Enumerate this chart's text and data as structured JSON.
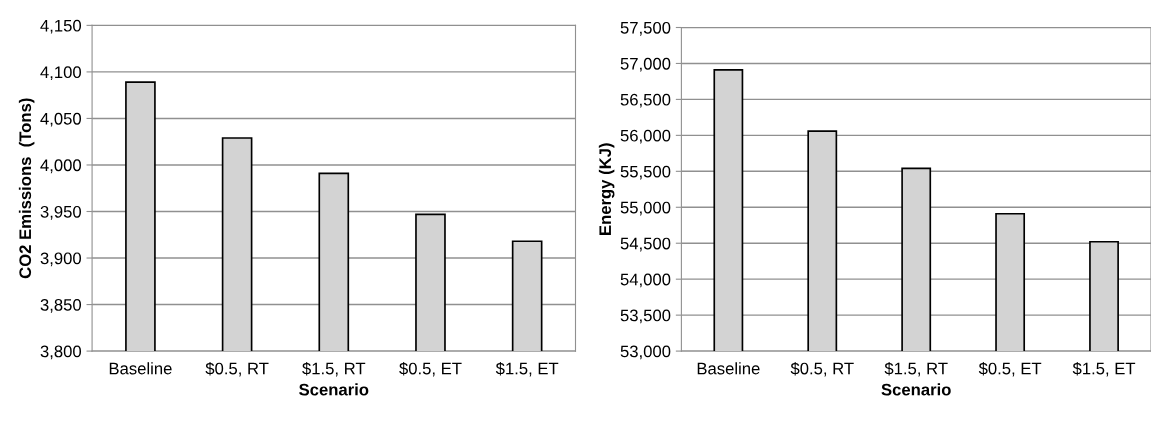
{
  "chart_data": [
    {
      "type": "bar",
      "xlabel": "Scenario",
      "ylabel": "CO2 Emissions  (Tons)",
      "categories": [
        "Baseline",
        "$0.5, RT",
        "$1.5, RT",
        "$0.5, ET",
        "$1.5, ET"
      ],
      "values": [
        4089,
        4029,
        3991,
        3947,
        3918
      ],
      "color": "#d3d3d3",
      "ylim": [
        3800,
        4150
      ],
      "yticks": [
        {
          "value": 3800,
          "label": "3,800"
        },
        {
          "value": 3850,
          "label": "3,850"
        },
        {
          "value": 3900,
          "label": "3,900"
        },
        {
          "value": 3950,
          "label": "3,950"
        },
        {
          "value": 4000,
          "label": "4,000"
        },
        {
          "value": 4050,
          "label": "4,050"
        },
        {
          "value": 4100,
          "label": "4,100"
        },
        {
          "value": 4150,
          "label": "4,150"
        }
      ],
      "grid": "y"
    },
    {
      "type": "bar",
      "xlabel": "Scenario",
      "ylabel": "Energy (KJ)",
      "categories": [
        "Baseline",
        "$0.5, RT",
        "$1.5, RT",
        "$0.5, ET",
        "$1.5, ET"
      ],
      "values": [
        56910,
        56060,
        55540,
        54910,
        54520
      ],
      "color": "#d3d3d3",
      "ylim": [
        53000,
        57500
      ],
      "yticks": [
        {
          "value": 53000,
          "label": "53,000"
        },
        {
          "value": 53500,
          "label": "53,500"
        },
        {
          "value": 54000,
          "label": "54,000"
        },
        {
          "value": 54500,
          "label": "54,500"
        },
        {
          "value": 55000,
          "label": "55,000"
        },
        {
          "value": 55500,
          "label": "55,500"
        },
        {
          "value": 56000,
          "label": "56,000"
        },
        {
          "value": 56500,
          "label": "56,500"
        },
        {
          "value": 57000,
          "label": "57,000"
        },
        {
          "value": 57500,
          "label": "57,500"
        }
      ],
      "grid": "y"
    }
  ]
}
